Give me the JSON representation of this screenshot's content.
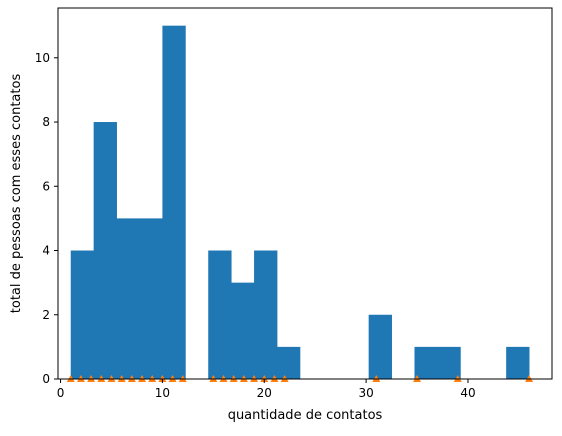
{
  "chart_data": {
    "type": "bar",
    "title": "",
    "xlabel": "quantidade de contatos",
    "ylabel": "total de pessoas com esses contatos",
    "xlim": [
      -0.25,
      48.25
    ],
    "ylim": [
      0,
      11.55
    ],
    "xticks": [
      0,
      10,
      20,
      30,
      40
    ],
    "yticks": [
      0,
      2,
      4,
      6,
      8,
      10
    ],
    "grid": false,
    "histogram": {
      "color": "#1f77b4",
      "bin_start": 1,
      "bin_width": 2.25,
      "counts": [
        4,
        8,
        5,
        5,
        11,
        0,
        4,
        3,
        4,
        1,
        0,
        0,
        0,
        2,
        0,
        1,
        1,
        0,
        0,
        1
      ]
    },
    "markers": {
      "color": "#ff7f0e",
      "shape": "triangle-up",
      "y": 0,
      "x": [
        1,
        2,
        3,
        4,
        5,
        6,
        7,
        8,
        9,
        10,
        11,
        12,
        15,
        16,
        17,
        18,
        19,
        20,
        21,
        22,
        31,
        35,
        39,
        46
      ]
    }
  }
}
